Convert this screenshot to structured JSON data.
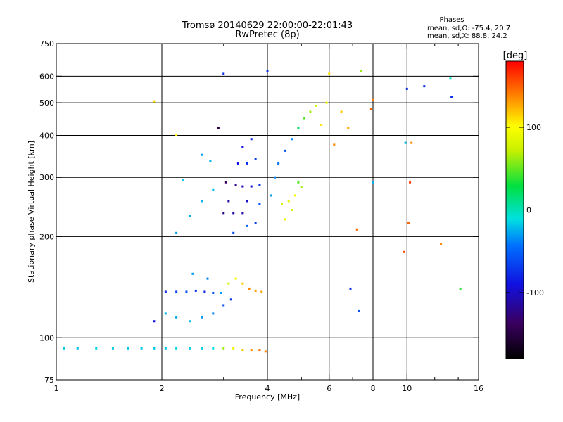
{
  "chart_data": {
    "type": "scatter",
    "title": "Tromsø 20140629 22:00:00-22:01:43",
    "subtitle": "RwPretec (8p)",
    "phases": {
      "title": "Phases",
      "line_o": "mean, sd,O: -75.4, 20.7",
      "line_x": "mean, sd,X:  88.8, 24.2"
    },
    "xlabel": "Frequency [MHz]",
    "ylabel": "Stationary phase Virtual Height [km]",
    "x_scale": "log",
    "y_scale": "log",
    "xlim": [
      1,
      16
    ],
    "ylim": [
      75,
      750
    ],
    "xticks": [
      {
        "value": 1,
        "label": "1"
      },
      {
        "value": 2,
        "label": "2"
      },
      {
        "value": 4,
        "label": "4"
      },
      {
        "value": 6,
        "label": "6"
      },
      {
        "value": 8,
        "label": "8"
      },
      {
        "value": 10,
        "label": "10"
      },
      {
        "value": 16,
        "label": "16"
      }
    ],
    "x_minor_ticks": [
      3,
      5,
      7,
      9,
      12,
      14
    ],
    "yticks": [
      {
        "value": 75,
        "label": "75"
      },
      {
        "value": 100,
        "label": "100"
      },
      {
        "value": 200,
        "label": "200"
      },
      {
        "value": 300,
        "label": "300"
      },
      {
        "value": 400,
        "label": "400"
      },
      {
        "value": 500,
        "label": "500"
      },
      {
        "value": 600,
        "label": "600"
      },
      {
        "value": 750,
        "label": "750"
      }
    ],
    "x_gridlines": [
      2,
      4,
      6,
      8,
      10
    ],
    "y_gridlines": [
      100,
      200,
      300,
      400,
      500,
      600
    ],
    "grid": true,
    "colorbar": {
      "title": "[deg]",
      "range": [
        -180,
        180
      ],
      "ticks": [
        {
          "value": 100,
          "label": "100"
        },
        {
          "value": 0,
          "label": "0"
        },
        {
          "value": -100,
          "label": "-100"
        }
      ]
    },
    "points": [
      [
        1.05,
        93,
        -40
      ],
      [
        1.15,
        93,
        -45
      ],
      [
        1.3,
        93,
        -35
      ],
      [
        1.45,
        93,
        -38
      ],
      [
        1.6,
        93,
        -42
      ],
      [
        1.75,
        93,
        -40
      ],
      [
        1.9,
        93,
        -40
      ],
      [
        2.05,
        93,
        -42
      ],
      [
        2.2,
        93,
        -35
      ],
      [
        2.4,
        93,
        -40
      ],
      [
        2.6,
        93,
        -38
      ],
      [
        2.8,
        93,
        -30
      ],
      [
        3.0,
        93,
        60
      ],
      [
        3.2,
        93,
        90
      ],
      [
        3.4,
        92,
        120
      ],
      [
        3.6,
        92,
        140
      ],
      [
        3.8,
        92,
        150
      ],
      [
        3.95,
        91,
        140
      ],
      [
        2.05,
        137,
        -100
      ],
      [
        2.2,
        137,
        -95
      ],
      [
        2.35,
        137,
        -90
      ],
      [
        2.5,
        138,
        -100
      ],
      [
        2.65,
        137,
        -105
      ],
      [
        2.8,
        136,
        -90
      ],
      [
        2.95,
        136,
        -60
      ],
      [
        3.1,
        145,
        80
      ],
      [
        3.25,
        150,
        95
      ],
      [
        3.4,
        145,
        120
      ],
      [
        3.55,
        140,
        140
      ],
      [
        3.7,
        138,
        135
      ],
      [
        3.85,
        137,
        130
      ],
      [
        2.05,
        118,
        -50
      ],
      [
        2.2,
        115,
        -55
      ],
      [
        2.4,
        112,
        -45
      ],
      [
        2.6,
        115,
        -60
      ],
      [
        2.8,
        118,
        -70
      ],
      [
        3.0,
        125,
        -90
      ],
      [
        3.15,
        130,
        -100
      ],
      [
        1.9,
        112,
        -110
      ],
      [
        2.45,
        155,
        -60
      ],
      [
        2.7,
        150,
        -70
      ],
      [
        2.2,
        205,
        -60
      ],
      [
        2.4,
        230,
        -55
      ],
      [
        2.6,
        255,
        -50
      ],
      [
        2.8,
        275,
        -45
      ],
      [
        2.3,
        295,
        -40
      ],
      [
        2.75,
        335,
        -50
      ],
      [
        2.6,
        350,
        -60
      ],
      [
        3.0,
        235,
        -130
      ],
      [
        3.2,
        235,
        -125
      ],
      [
        3.4,
        235,
        -120
      ],
      [
        3.05,
        290,
        -140
      ],
      [
        3.25,
        285,
        -130
      ],
      [
        3.4,
        282,
        -120
      ],
      [
        3.6,
        282,
        -110
      ],
      [
        3.8,
        285,
        -100
      ],
      [
        3.1,
        255,
        -125
      ],
      [
        3.5,
        255,
        -115
      ],
      [
        3.3,
        330,
        -110
      ],
      [
        3.5,
        330,
        -100
      ],
      [
        3.7,
        340,
        -95
      ],
      [
        3.4,
        370,
        -110
      ],
      [
        3.6,
        390,
        -105
      ],
      [
        3.2,
        205,
        -90
      ],
      [
        3.5,
        215,
        -85
      ],
      [
        3.8,
        250,
        -90
      ],
      [
        3.7,
        220,
        -95
      ],
      [
        4.1,
        265,
        -60
      ],
      [
        4.2,
        300,
        -70
      ],
      [
        4.3,
        330,
        -80
      ],
      [
        4.5,
        360,
        -90
      ],
      [
        4.7,
        390,
        -70
      ],
      [
        4.9,
        420,
        10
      ],
      [
        5.1,
        450,
        40
      ],
      [
        5.3,
        470,
        60
      ],
      [
        5.5,
        490,
        80
      ],
      [
        4.4,
        250,
        80
      ],
      [
        4.6,
        255,
        85
      ],
      [
        4.8,
        265,
        95
      ],
      [
        5.0,
        280,
        60
      ],
      [
        4.5,
        225,
        90
      ],
      [
        4.7,
        240,
        75
      ],
      [
        4.9,
        290,
        40
      ],
      [
        5.7,
        430,
        110
      ],
      [
        5.9,
        500,
        90
      ],
      [
        6.0,
        610,
        110
      ],
      [
        6.5,
        470,
        120
      ],
      [
        6.8,
        420,
        130
      ],
      [
        6.2,
        375,
        140
      ],
      [
        7.4,
        620,
        60
      ],
      [
        7.9,
        480,
        150
      ],
      [
        8.0,
        510,
        145
      ],
      [
        7.2,
        210,
        150
      ],
      [
        10.0,
        550,
        -100
      ],
      [
        9.9,
        380,
        -50
      ],
      [
        10.2,
        290,
        160
      ],
      [
        10.1,
        220,
        150
      ],
      [
        9.8,
        180,
        160
      ],
      [
        10.3,
        380,
        140
      ],
      [
        13.3,
        590,
        -20
      ],
      [
        13.4,
        520,
        -100
      ],
      [
        11.2,
        560,
        -100
      ],
      [
        6.9,
        140,
        -100
      ],
      [
        7.3,
        120,
        -90
      ],
      [
        8.0,
        290,
        -50
      ],
      [
        12.5,
        190,
        140
      ],
      [
        14.2,
        140,
        30
      ],
      [
        1.9,
        505,
        110
      ],
      [
        3.0,
        610,
        -100
      ],
      [
        4.0,
        620,
        -100
      ],
      [
        2.9,
        420,
        -150
      ],
      [
        2.2,
        400,
        100
      ]
    ]
  }
}
